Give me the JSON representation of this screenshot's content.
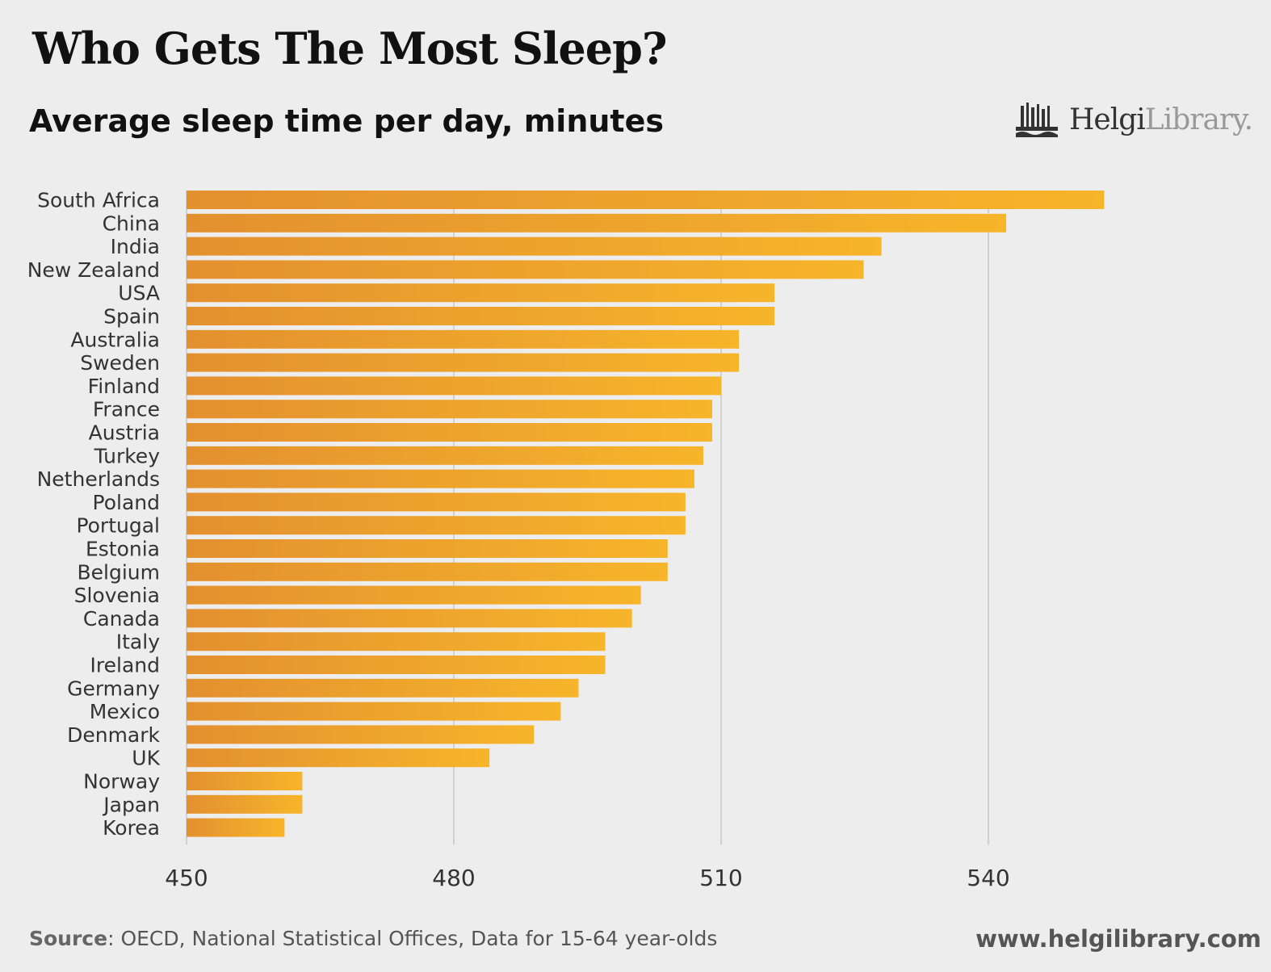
{
  "header": {
    "title": "Who Gets The Most Sleep?",
    "subtitle": "Average sleep time per day, minutes"
  },
  "logo": {
    "part1": "Helgi",
    "part2": "Library."
  },
  "footer": {
    "source_label": "Source",
    "source_text": ": OECD, National Statistical Offices, Data for 15-64 year-olds",
    "url": "www.helgilibrary.com"
  },
  "colors": {
    "bar_start": "#e3902f",
    "bar_end": "#f7b52a",
    "grid": "#c8c8c8",
    "background": "#ededed"
  },
  "chart_data": {
    "type": "bar",
    "orientation": "horizontal",
    "title": "Who Gets The Most Sleep?",
    "subtitle": "Average sleep time per day, minutes",
    "xlabel": "",
    "ylabel": "",
    "xlim": [
      450,
      565
    ],
    "xticks": [
      450,
      480,
      510,
      540
    ],
    "grid": true,
    "categories": [
      "South Africa",
      "China",
      "India",
      "New Zealand",
      "USA",
      "Spain",
      "Australia",
      "Sweden",
      "Finland",
      "France",
      "Austria",
      "Turkey",
      "Netherlands",
      "Poland",
      "Portugal",
      "Estonia",
      "Belgium",
      "Slovenia",
      "Canada",
      "Italy",
      "Ireland",
      "Germany",
      "Mexico",
      "Denmark",
      "UK",
      "Norway",
      "Japan",
      "Korea"
    ],
    "values": [
      553,
      542,
      528,
      526,
      516,
      516,
      512,
      512,
      510,
      509,
      509,
      508,
      507,
      506,
      506,
      504,
      504,
      501,
      500,
      497,
      497,
      494,
      492,
      489,
      484,
      463,
      463,
      461
    ]
  }
}
